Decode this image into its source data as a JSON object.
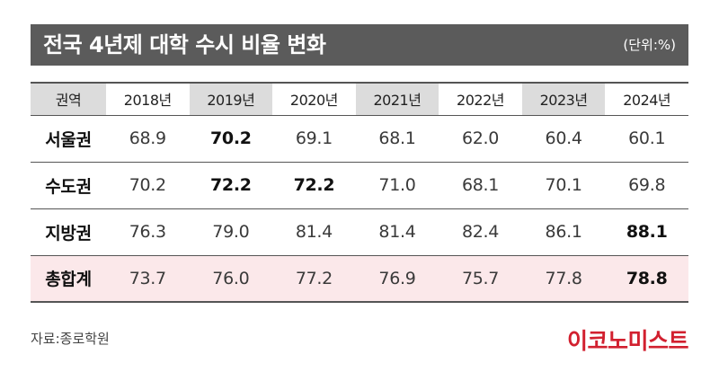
{
  "header": {
    "title": "전국 4년제 대학 수시 비율 변화",
    "unit": "(단위:%)"
  },
  "table": {
    "columns": [
      "권역",
      "2018년",
      "2019년",
      "2020년",
      "2021년",
      "2022년",
      "2023년",
      "2024년"
    ],
    "rows": [
      {
        "label": "서울권",
        "values": [
          "68.9",
          "70.2",
          "69.1",
          "68.1",
          "62.0",
          "60.4",
          "60.1"
        ],
        "bold": [
          false,
          true,
          false,
          false,
          false,
          false,
          false
        ]
      },
      {
        "label": "수도권",
        "values": [
          "70.2",
          "72.2",
          "72.2",
          "71.0",
          "68.1",
          "70.1",
          "69.8"
        ],
        "bold": [
          false,
          true,
          true,
          false,
          false,
          false,
          false
        ]
      },
      {
        "label": "지방권",
        "values": [
          "76.3",
          "79.0",
          "81.4",
          "81.4",
          "82.4",
          "86.1",
          "88.1"
        ],
        "bold": [
          false,
          false,
          false,
          false,
          false,
          false,
          true
        ]
      },
      {
        "label": "총합계",
        "values": [
          "73.7",
          "76.0",
          "77.2",
          "76.9",
          "75.7",
          "77.8",
          "78.8"
        ],
        "bold": [
          false,
          false,
          false,
          false,
          false,
          false,
          true
        ]
      }
    ]
  },
  "footer": {
    "source": "자료:종로학원",
    "logo_text": "이코노미스트"
  },
  "colors": {
    "title_bar": "#5b5b5b",
    "header_shade": "#dcdcdc",
    "total_row": "#fbe8ea",
    "brand": "#d2202f"
  }
}
